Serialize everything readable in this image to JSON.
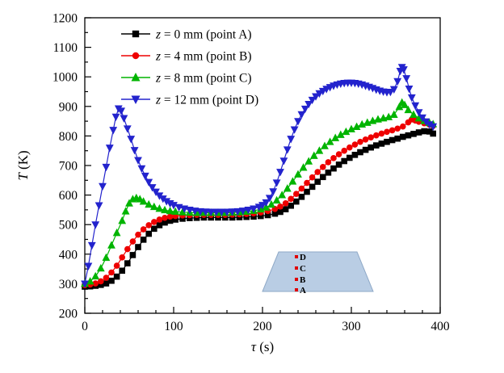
{
  "figure": {
    "background": "#ffffff"
  },
  "chart_data": {
    "type": "line",
    "title": "",
    "xlabel_var": "τ",
    "xlabel_rest": " (s)",
    "ylabel_var": "T",
    "ylabel_rest": " (K)",
    "xlim": [
      0,
      400
    ],
    "ylim": [
      200,
      1200
    ],
    "x_major_tick": 100,
    "x_minor_tick": 20,
    "y_major_tick": 100,
    "y_minor_tick": 50,
    "grid": false,
    "legend_position": "top-left-inside",
    "series": [
      {
        "name": "point-a",
        "label_var": "z",
        "label_rest": " = 0 mm (point A)",
        "color": "#000000",
        "marker": "square",
        "points": [
          [
            0,
            290
          ],
          [
            6,
            291
          ],
          [
            12,
            293
          ],
          [
            18,
            296
          ],
          [
            24,
            301
          ],
          [
            30,
            310
          ],
          [
            36,
            324
          ],
          [
            42,
            344
          ],
          [
            48,
            369
          ],
          [
            54,
            397
          ],
          [
            60,
            424
          ],
          [
            66,
            449
          ],
          [
            72,
            469
          ],
          [
            78,
            486
          ],
          [
            84,
            498
          ],
          [
            90,
            507
          ],
          [
            96,
            513
          ],
          [
            102,
            517
          ],
          [
            110,
            520
          ],
          [
            118,
            522
          ],
          [
            126,
            523
          ],
          [
            134,
            524
          ],
          [
            142,
            524
          ],
          [
            150,
            524
          ],
          [
            158,
            524
          ],
          [
            166,
            524
          ],
          [
            174,
            525
          ],
          [
            182,
            526
          ],
          [
            190,
            527
          ],
          [
            198,
            529
          ],
          [
            206,
            532
          ],
          [
            214,
            537
          ],
          [
            220,
            543
          ],
          [
            226,
            552
          ],
          [
            232,
            564
          ],
          [
            238,
            578
          ],
          [
            244,
            594
          ],
          [
            250,
            611
          ],
          [
            256,
            628
          ],
          [
            262,
            645
          ],
          [
            268,
            661
          ],
          [
            274,
            676
          ],
          [
            280,
            690
          ],
          [
            286,
            703
          ],
          [
            292,
            715
          ],
          [
            298,
            726
          ],
          [
            304,
            736
          ],
          [
            310,
            745
          ],
          [
            316,
            753
          ],
          [
            322,
            761
          ],
          [
            328,
            768
          ],
          [
            334,
            774
          ],
          [
            340,
            780
          ],
          [
            346,
            786
          ],
          [
            352,
            791
          ],
          [
            358,
            797
          ],
          [
            364,
            802
          ],
          [
            370,
            807
          ],
          [
            376,
            812
          ],
          [
            382,
            816
          ],
          [
            388,
            815
          ],
          [
            392,
            808
          ]
        ]
      },
      {
        "name": "point-b",
        "label_var": "z",
        "label_rest": " = 4 mm (point B)",
        "color": "#ee0000",
        "marker": "circle",
        "points": [
          [
            0,
            295
          ],
          [
            6,
            297
          ],
          [
            12,
            301
          ],
          [
            18,
            308
          ],
          [
            24,
            320
          ],
          [
            30,
            338
          ],
          [
            36,
            361
          ],
          [
            42,
            389
          ],
          [
            48,
            417
          ],
          [
            54,
            443
          ],
          [
            60,
            466
          ],
          [
            66,
            484
          ],
          [
            72,
            498
          ],
          [
            78,
            509
          ],
          [
            84,
            517
          ],
          [
            90,
            523
          ],
          [
            96,
            527
          ],
          [
            102,
            529
          ],
          [
            110,
            531
          ],
          [
            118,
            532
          ],
          [
            126,
            533
          ],
          [
            134,
            533
          ],
          [
            142,
            533
          ],
          [
            150,
            533
          ],
          [
            158,
            533
          ],
          [
            166,
            534
          ],
          [
            174,
            535
          ],
          [
            182,
            536
          ],
          [
            190,
            538
          ],
          [
            198,
            541
          ],
          [
            206,
            546
          ],
          [
            214,
            553
          ],
          [
            220,
            561
          ],
          [
            226,
            572
          ],
          [
            232,
            587
          ],
          [
            238,
            604
          ],
          [
            244,
            622
          ],
          [
            250,
            641
          ],
          [
            256,
            660
          ],
          [
            262,
            678
          ],
          [
            268,
            695
          ],
          [
            274,
            711
          ],
          [
            280,
            725
          ],
          [
            286,
            738
          ],
          [
            292,
            750
          ],
          [
            298,
            761
          ],
          [
            304,
            771
          ],
          [
            310,
            780
          ],
          [
            316,
            788
          ],
          [
            322,
            795
          ],
          [
            328,
            802
          ],
          [
            334,
            808
          ],
          [
            340,
            814
          ],
          [
            346,
            819
          ],
          [
            352,
            825
          ],
          [
            358,
            832
          ],
          [
            364,
            846
          ],
          [
            368,
            856
          ],
          [
            372,
            852
          ],
          [
            376,
            848
          ],
          [
            382,
            843
          ],
          [
            388,
            838
          ],
          [
            392,
            834
          ]
        ]
      },
      {
        "name": "point-c",
        "label_var": "z",
        "label_rest": " = 8 mm (point C)",
        "color": "#00b400",
        "marker": "triangle-up",
        "points": [
          [
            0,
            300
          ],
          [
            6,
            308
          ],
          [
            12,
            325
          ],
          [
            18,
            352
          ],
          [
            24,
            388
          ],
          [
            30,
            430
          ],
          [
            36,
            472
          ],
          [
            42,
            513
          ],
          [
            46,
            545
          ],
          [
            50,
            572
          ],
          [
            54,
            586
          ],
          [
            58,
            590
          ],
          [
            62,
            586
          ],
          [
            66,
            578
          ],
          [
            72,
            568
          ],
          [
            78,
            560
          ],
          [
            84,
            554
          ],
          [
            90,
            549
          ],
          [
            96,
            546
          ],
          [
            102,
            544
          ],
          [
            110,
            542
          ],
          [
            118,
            541
          ],
          [
            126,
            540
          ],
          [
            134,
            540
          ],
          [
            142,
            540
          ],
          [
            150,
            540
          ],
          [
            158,
            540
          ],
          [
            166,
            541
          ],
          [
            174,
            542
          ],
          [
            182,
            544
          ],
          [
            190,
            547
          ],
          [
            198,
            552
          ],
          [
            204,
            558
          ],
          [
            210,
            568
          ],
          [
            216,
            582
          ],
          [
            222,
            600
          ],
          [
            228,
            622
          ],
          [
            234,
            646
          ],
          [
            240,
            670
          ],
          [
            246,
            693
          ],
          [
            252,
            714
          ],
          [
            258,
            733
          ],
          [
            264,
            750
          ],
          [
            270,
            766
          ],
          [
            276,
            780
          ],
          [
            282,
            793
          ],
          [
            288,
            804
          ],
          [
            294,
            814
          ],
          [
            300,
            823
          ],
          [
            306,
            831
          ],
          [
            312,
            839
          ],
          [
            318,
            845
          ],
          [
            324,
            851
          ],
          [
            330,
            856
          ],
          [
            336,
            860
          ],
          [
            342,
            864
          ],
          [
            348,
            872
          ],
          [
            354,
            898
          ],
          [
            357,
            913
          ],
          [
            360,
            905
          ],
          [
            364,
            888
          ],
          [
            370,
            872
          ],
          [
            376,
            860
          ],
          [
            382,
            851
          ],
          [
            388,
            844
          ],
          [
            392,
            840
          ]
        ]
      },
      {
        "name": "point-d",
        "label_var": "z",
        "label_rest": " = 12 mm (point D)",
        "color": "#2323cd",
        "marker": "triangle-down",
        "points": [
          [
            0,
            300
          ],
          [
            4,
            360
          ],
          [
            8,
            430
          ],
          [
            12,
            500
          ],
          [
            16,
            565
          ],
          [
            20,
            630
          ],
          [
            24,
            695
          ],
          [
            28,
            760
          ],
          [
            32,
            820
          ],
          [
            35,
            865
          ],
          [
            38,
            893
          ],
          [
            41,
            885
          ],
          [
            44,
            860
          ],
          [
            48,
            825
          ],
          [
            52,
            790
          ],
          [
            56,
            752
          ],
          [
            60,
            718
          ],
          [
            64,
            690
          ],
          [
            68,
            665
          ],
          [
            72,
            644
          ],
          [
            76,
            626
          ],
          [
            80,
            611
          ],
          [
            84,
            598
          ],
          [
            88,
            588
          ],
          [
            92,
            579
          ],
          [
            96,
            572
          ],
          [
            100,
            566
          ],
          [
            106,
            559
          ],
          [
            112,
            554
          ],
          [
            118,
            550
          ],
          [
            124,
            547
          ],
          [
            130,
            545
          ],
          [
            136,
            544
          ],
          [
            142,
            543
          ],
          [
            148,
            543
          ],
          [
            154,
            543
          ],
          [
            160,
            543
          ],
          [
            166,
            544
          ],
          [
            172,
            545
          ],
          [
            178,
            547
          ],
          [
            184,
            550
          ],
          [
            190,
            554
          ],
          [
            196,
            560
          ],
          [
            200,
            566
          ],
          [
            204,
            575
          ],
          [
            208,
            590
          ],
          [
            212,
            612
          ],
          [
            216,
            642
          ],
          [
            220,
            678
          ],
          [
            224,
            716
          ],
          [
            228,
            754
          ],
          [
            232,
            790
          ],
          [
            236,
            822
          ],
          [
            240,
            850
          ],
          [
            244,
            873
          ],
          [
            248,
            892
          ],
          [
            252,
            908
          ],
          [
            256,
            922
          ],
          [
            260,
            934
          ],
          [
            264,
            944
          ],
          [
            268,
            952
          ],
          [
            272,
            959
          ],
          [
            276,
            965
          ],
          [
            280,
            970
          ],
          [
            284,
            974
          ],
          [
            288,
            977
          ],
          [
            292,
            979
          ],
          [
            296,
            980
          ],
          [
            300,
            980
          ],
          [
            304,
            979
          ],
          [
            308,
            977
          ],
          [
            312,
            974
          ],
          [
            316,
            970
          ],
          [
            320,
            966
          ],
          [
            324,
            962
          ],
          [
            328,
            957
          ],
          [
            332,
            953
          ],
          [
            336,
            950
          ],
          [
            340,
            948
          ],
          [
            344,
            949
          ],
          [
            348,
            958
          ],
          [
            352,
            985
          ],
          [
            355,
            1020
          ],
          [
            357,
            1033
          ],
          [
            359,
            1025
          ],
          [
            362,
            995
          ],
          [
            365,
            960
          ],
          [
            368,
            930
          ],
          [
            372,
            903
          ],
          [
            376,
            880
          ],
          [
            380,
            862
          ],
          [
            384,
            849
          ],
          [
            388,
            839
          ],
          [
            392,
            832
          ]
        ]
      }
    ],
    "inset": {
      "shape": "trapezoid-cross-section",
      "fill": "#b9cde4",
      "stroke": "#8fa9c7",
      "point_labels": [
        "D",
        "C",
        "B",
        "A"
      ],
      "point_color": "#e00000"
    }
  }
}
